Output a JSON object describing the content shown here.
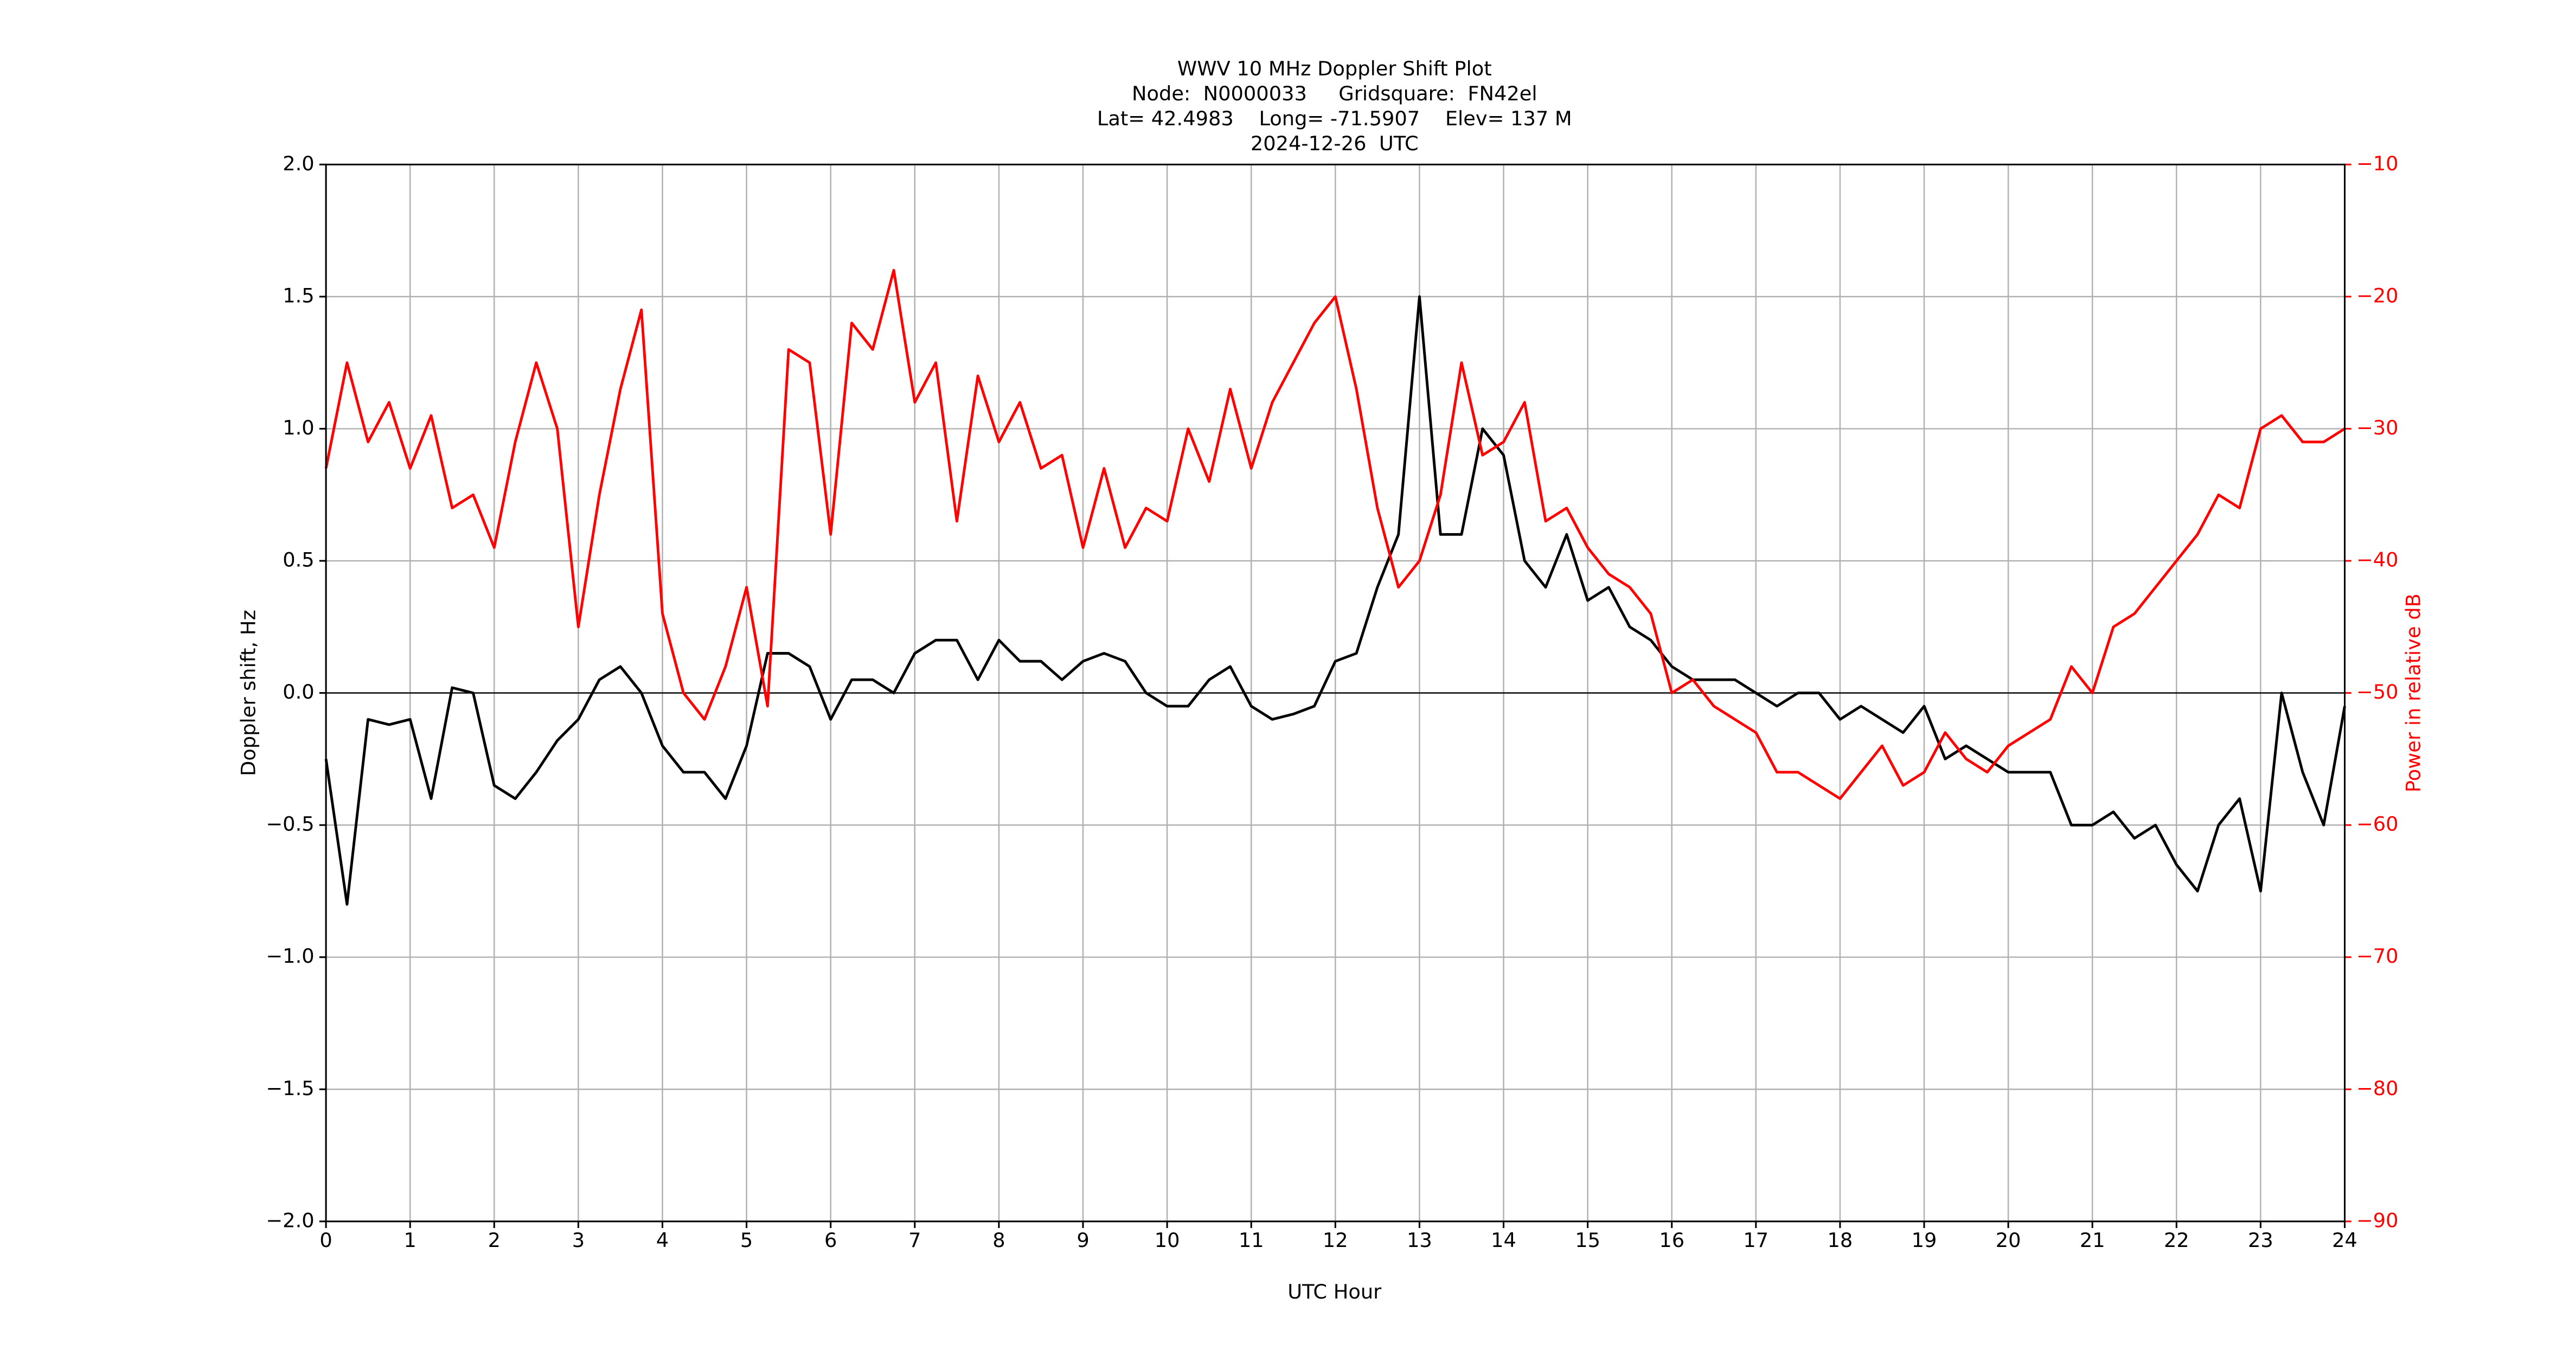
{
  "chart_data": {
    "type": "line",
    "title_lines": [
      "WWV 10 MHz Doppler Shift Plot",
      "Node:  N0000033     Gridsquare:  FN42el",
      "Lat= 42.4983    Long= -71.5907    Elev= 137 M",
      "2024-12-26  UTC"
    ],
    "xlabel": "UTC Hour",
    "ylabel": "Doppler shift, Hz",
    "y2label": "Power in relative dB",
    "x": [
      0,
      0.25,
      0.5,
      0.75,
      1,
      1.25,
      1.5,
      1.75,
      2,
      2.25,
      2.5,
      2.75,
      3,
      3.25,
      3.5,
      3.75,
      4,
      4.25,
      4.5,
      4.75,
      5,
      5.25,
      5.5,
      5.75,
      6,
      6.25,
      6.5,
      6.75,
      7,
      7.25,
      7.5,
      7.75,
      8,
      8.25,
      8.5,
      8.75,
      9,
      9.25,
      9.5,
      9.75,
      10,
      10.25,
      10.5,
      10.75,
      11,
      11.25,
      11.5,
      11.75,
      12,
      12.25,
      12.5,
      12.75,
      13,
      13.25,
      13.5,
      13.75,
      14,
      14.25,
      14.5,
      14.75,
      15,
      15.25,
      15.5,
      15.75,
      16,
      16.25,
      16.5,
      16.75,
      17,
      17.25,
      17.5,
      17.75,
      18,
      18.25,
      18.5,
      18.75,
      19,
      19.25,
      19.5,
      19.75,
      20,
      20.25,
      20.5,
      20.75,
      21,
      21.25,
      21.5,
      21.75,
      22,
      22.25,
      22.5,
      22.75,
      23,
      23.25,
      23.5,
      23.75,
      24
    ],
    "series": [
      {
        "name": "Doppler shift",
        "color": "#000000",
        "axis": "y",
        "values": [
          -0.25,
          -0.8,
          -0.1,
          -0.12,
          -0.1,
          -0.4,
          0.02,
          0,
          -0.35,
          -0.4,
          -0.3,
          -0.18,
          -0.1,
          0.05,
          0.1,
          0,
          -0.2,
          -0.3,
          -0.3,
          -0.4,
          -0.2,
          0.15,
          0.15,
          0.1,
          -0.1,
          0.05,
          0.05,
          0,
          0.15,
          0.2,
          0.2,
          0.05,
          0.2,
          0.12,
          0.12,
          0.05,
          0.12,
          0.15,
          0.12,
          0,
          -0.05,
          -0.05,
          0.05,
          0.1,
          -0.05,
          -0.1,
          -0.08,
          -0.05,
          0.12,
          0.15,
          0.4,
          0.6,
          1.5,
          0.6,
          0.6,
          1,
          0.9,
          0.5,
          0.4,
          0.6,
          0.35,
          0.4,
          0.25,
          0.2,
          0.1,
          0.05,
          0.05,
          0.05,
          0,
          -0.05,
          0,
          0,
          -0.1,
          -0.05,
          -0.1,
          -0.15,
          -0.05,
          -0.25,
          -0.2,
          -0.25,
          -0.3,
          -0.3,
          -0.3,
          -0.5,
          -0.5,
          -0.45,
          -0.55,
          -0.5,
          -0.65,
          -0.75,
          -0.5,
          -0.4,
          -0.75,
          0,
          -0.3,
          -0.5,
          -0.05
        ]
      },
      {
        "name": "Power",
        "color": "#ff0000",
        "axis": "y2",
        "values": [
          -33,
          -25,
          -31,
          -28,
          -33,
          -29,
          -36,
          -35,
          -39,
          -31,
          -25,
          -30,
          -45,
          -35,
          -27,
          -21,
          -44,
          -50,
          -52,
          -48,
          -42,
          -51,
          -24,
          -25,
          -38,
          -22,
          -24,
          -18,
          -28,
          -25,
          -37,
          -26,
          -31,
          -28,
          -33,
          -32,
          -39,
          -33,
          -39,
          -36,
          -37,
          -30,
          -34,
          -27,
          -33,
          -28,
          -25,
          -22,
          -20,
          -27,
          -36,
          -42,
          -40,
          -35,
          -25,
          -32,
          -31,
          -28,
          -37,
          -36,
          -39,
          -41,
          -42,
          -44,
          -50,
          -49,
          -51,
          -52,
          -53,
          -56,
          -56,
          -57,
          -58,
          -56,
          -54,
          -57,
          -56,
          -53,
          -55,
          -56,
          -54,
          -53,
          -52,
          -48,
          -50,
          -45,
          -44,
          -42,
          -40,
          -38,
          -35,
          -36,
          -30,
          -29,
          -31,
          -31,
          -30
        ]
      }
    ],
    "xlim": [
      0,
      24
    ],
    "xticks": [
      0,
      1,
      2,
      3,
      4,
      5,
      6,
      7,
      8,
      9,
      10,
      11,
      12,
      13,
      14,
      15,
      16,
      17,
      18,
      19,
      20,
      21,
      22,
      23,
      24
    ],
    "ylim": [
      -2,
      2
    ],
    "yticks": [
      {
        "value": -2,
        "label": "−2.0"
      },
      {
        "value": -1.5,
        "label": "−1.5"
      },
      {
        "value": -1,
        "label": "−1.0"
      },
      {
        "value": -0.5,
        "label": "−0.5"
      },
      {
        "value": 0,
        "label": "0.0"
      },
      {
        "value": 0.5,
        "label": "0.5"
      },
      {
        "value": 1,
        "label": "1.0"
      },
      {
        "value": 1.5,
        "label": "1.5"
      },
      {
        "value": 2,
        "label": "2.0"
      }
    ],
    "y2lim": [
      -90,
      -10
    ],
    "y2ticks": [
      {
        "value": -90,
        "label": "−90"
      },
      {
        "value": -80,
        "label": "−80"
      },
      {
        "value": -70,
        "label": "−70"
      },
      {
        "value": -60,
        "label": "−60"
      },
      {
        "value": -50,
        "label": "−50"
      },
      {
        "value": -40,
        "label": "−40"
      },
      {
        "value": -30,
        "label": "−30"
      },
      {
        "value": -20,
        "label": "−20"
      },
      {
        "value": -10,
        "label": "−10"
      }
    ],
    "grid": true,
    "y2color": "#ff0000"
  }
}
